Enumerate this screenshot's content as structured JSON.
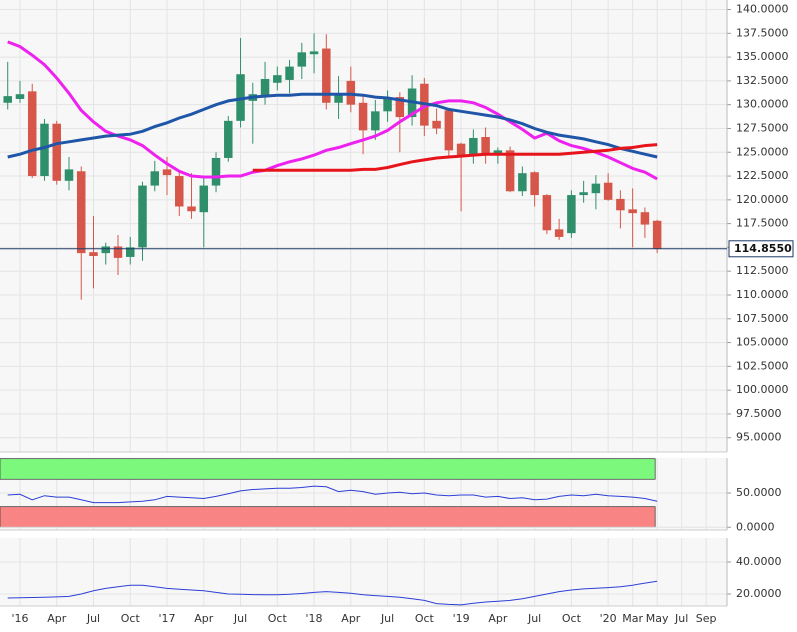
{
  "chart_data": [
    {
      "type": "candlestick",
      "x": [
        -1,
        0,
        1,
        2,
        3,
        4,
        5,
        6,
        7,
        8,
        9,
        10,
        11,
        12,
        13,
        14,
        15,
        16,
        17,
        18,
        19,
        20,
        21,
        22,
        23,
        24,
        25,
        26,
        27,
        28,
        29,
        30,
        31,
        32,
        33,
        34,
        35,
        36,
        37,
        38,
        39,
        40,
        41,
        42,
        43,
        44,
        45,
        46,
        47,
        48,
        49,
        50,
        51,
        52
      ],
      "open": [
        130.2,
        130.6,
        131.4,
        122.5,
        128.0,
        122.0,
        123.0,
        114.5,
        114.4,
        115.1,
        114.0,
        115.0,
        121.5,
        123.2,
        122.5,
        119.3,
        118.7,
        121.5,
        124.4,
        128.3,
        130.4,
        130.8,
        132.3,
        132.6,
        134.0,
        135.3,
        135.9,
        130.2,
        132.5,
        130.2,
        127.3,
        129.3,
        130.8,
        128.7,
        132.2,
        128.3,
        129.4,
        125.9,
        124.7,
        126.6,
        124.7,
        125.2,
        120.9,
        122.9,
        120.5,
        116.9,
        116.5,
        120.5,
        120.7,
        121.8,
        120.1,
        119.0,
        118.7,
        117.8
      ],
      "high": [
        134.5,
        132.5,
        132.2,
        128.5,
        128.3,
        124.5,
        123.5,
        118.3,
        115.5,
        116.3,
        116.1,
        121.9,
        124.1,
        124.5,
        123.1,
        122.8,
        122.5,
        125.0,
        128.8,
        137.0,
        132.3,
        134.5,
        134.0,
        134.7,
        136.5,
        137.5,
        137.4,
        133.0,
        134.0,
        130.9,
        130.5,
        131.5,
        131.3,
        133.1,
        132.8,
        129.6,
        129.6,
        126.0,
        127.4,
        127.6,
        125.5,
        125.6,
        123.5,
        123.0,
        120.6,
        118.0,
        121.0,
        122.0,
        122.6,
        122.8,
        121.0,
        121.2,
        119.2,
        117.9
      ],
      "low": [
        129.5,
        130.2,
        122.3,
        122.0,
        121.6,
        121.0,
        109.5,
        110.7,
        113.2,
        112.1,
        113.2,
        113.6,
        120.9,
        120.5,
        118.3,
        118.0,
        115.0,
        120.8,
        124.0,
        127.6,
        125.9,
        130.0,
        131.5,
        131.2,
        132.7,
        133.3,
        129.5,
        128.5,
        129.2,
        124.8,
        126.3,
        128.2,
        125.0,
        127.8,
        126.7,
        126.9,
        124.5,
        118.8,
        123.8,
        123.8,
        123.8,
        120.8,
        120.4,
        119.3,
        116.4,
        115.8,
        116.0,
        119.7,
        119.0,
        119.9,
        117.0,
        115.0,
        116.0,
        114.4
      ],
      "close": [
        130.9,
        131.1,
        122.5,
        128.0,
        122.0,
        123.2,
        114.4,
        114.1,
        115.1,
        113.9,
        115.0,
        121.5,
        123.0,
        122.6,
        119.3,
        118.8,
        121.5,
        124.4,
        128.3,
        133.2,
        131.1,
        132.7,
        133.1,
        134.0,
        135.5,
        135.6,
        130.2,
        131.2,
        130.0,
        127.3,
        129.3,
        130.7,
        128.7,
        131.7,
        127.8,
        127.5,
        125.2,
        124.7,
        126.5,
        124.7,
        125.2,
        120.9,
        122.8,
        120.5,
        116.8,
        116.1,
        120.5,
        120.8,
        121.7,
        120.0,
        118.9,
        118.6,
        117.4,
        114.855
      ],
      "up_color": "#2f8f6b",
      "down_color": "#d6574a",
      "overlays": [
        {
          "color": "#ee22ee",
          "values": [
            136.6,
            136.1,
            135.2,
            134.2,
            132.8,
            131.2,
            129.4,
            128.2,
            127.2,
            126.7,
            126.3,
            125.7,
            124.7,
            123.8,
            123.0,
            122.5,
            122.4,
            122.4,
            122.5,
            122.5,
            122.9,
            123.1,
            123.6,
            124.0,
            124.3,
            124.7,
            125.2,
            125.5,
            125.9,
            126.3,
            126.7,
            127.3,
            128.2,
            129.0,
            129.8,
            130.2,
            130.4,
            130.4,
            130.2,
            129.7,
            129.0,
            128.2,
            127.4,
            126.5,
            127.0,
            126.2,
            125.7,
            125.4,
            125.0,
            124.5,
            123.9,
            123.3,
            122.9,
            122.2
          ]
        },
        {
          "color": "#1f56a8",
          "values": [
            124.5,
            124.8,
            125.2,
            125.5,
            125.9,
            126.1,
            126.3,
            126.5,
            126.7,
            126.8,
            126.9,
            127.2,
            127.7,
            128.1,
            128.6,
            129.0,
            129.5,
            130.0,
            130.4,
            130.6,
            130.8,
            130.9,
            131.0,
            131.0,
            131.1,
            131.1,
            131.1,
            131.1,
            131.1,
            131.0,
            130.8,
            130.7,
            130.5,
            130.3,
            130.1,
            129.9,
            129.5,
            129.3,
            129.1,
            128.9,
            128.7,
            128.4,
            128.0,
            127.5,
            127.1,
            126.8,
            126.6,
            126.4,
            126.1,
            125.8,
            125.4,
            125.1,
            124.8,
            124.5
          ]
        },
        {
          "color": "#e8141b",
          "values": [
            null,
            null,
            null,
            null,
            null,
            null,
            null,
            null,
            null,
            null,
            null,
            null,
            null,
            null,
            null,
            null,
            null,
            null,
            null,
            null,
            123.1,
            123.1,
            123.1,
            123.1,
            123.1,
            123.1,
            123.1,
            123.1,
            123.1,
            123.2,
            123.2,
            123.4,
            123.7,
            124.0,
            124.2,
            124.4,
            124.5,
            124.6,
            124.7,
            124.8,
            124.8,
            124.8,
            124.8,
            124.8,
            124.8,
            124.8,
            124.9,
            125.0,
            125.1,
            125.2,
            125.4,
            125.5,
            125.7,
            125.8
          ]
        }
      ],
      "last_price": {
        "value": 114.855,
        "label": "114.8550"
      },
      "ylim": [
        93.5,
        141
      ],
      "yticks": [
        {
          "value": 95,
          "label": "95.0000"
        },
        {
          "value": 97.5,
          "label": "97.5000"
        },
        {
          "value": 100,
          "label": "100.0000"
        },
        {
          "value": 102.5,
          "label": "102.5000"
        },
        {
          "value": 105,
          "label": "105.0000"
        },
        {
          "value": 107.5,
          "label": "107.5000"
        },
        {
          "value": 110,
          "label": "110.0000"
        },
        {
          "value": 112.5,
          "label": "112.5000"
        },
        {
          "value": 115,
          "label": "115.0000"
        },
        {
          "value": 117.5,
          "label": "117.5000"
        },
        {
          "value": 120,
          "label": "120.0000"
        },
        {
          "value": 122.5,
          "label": "122.5000"
        },
        {
          "value": 125,
          "label": "125.0000"
        },
        {
          "value": 127.5,
          "label": "127.5000"
        },
        {
          "value": 130,
          "label": "130.0000"
        },
        {
          "value": 132.5,
          "label": "132.5000"
        },
        {
          "value": 135,
          "label": "135.0000"
        },
        {
          "value": 137.5,
          "label": "137.5000"
        },
        {
          "value": 140,
          "label": "140.0000"
        }
      ],
      "xlim": [
        -1.63,
        57.7
      ],
      "xticks": [
        {
          "value": 0,
          "label": "'16"
        },
        {
          "value": 3,
          "label": "Apr"
        },
        {
          "value": 6,
          "label": "Jul"
        },
        {
          "value": 9,
          "label": "Oct"
        },
        {
          "value": 12,
          "label": "'17"
        },
        {
          "value": 15,
          "label": "Apr"
        },
        {
          "value": 18,
          "label": "Jul"
        },
        {
          "value": 21,
          "label": "Oct"
        },
        {
          "value": 24,
          "label": "'18"
        },
        {
          "value": 27,
          "label": "Apr"
        },
        {
          "value": 30,
          "label": "Jul"
        },
        {
          "value": 33,
          "label": "Oct"
        },
        {
          "value": 36,
          "label": "'19"
        },
        {
          "value": 39,
          "label": "Apr"
        },
        {
          "value": 42,
          "label": "Jul"
        },
        {
          "value": 45,
          "label": "Oct"
        },
        {
          "value": 48,
          "label": "'20"
        },
        {
          "value": 50,
          "label": "Mar"
        },
        {
          "value": 52,
          "label": "May"
        },
        {
          "value": 54,
          "label": "Jul"
        },
        {
          "value": 56,
          "label": "Sep"
        }
      ]
    },
    {
      "type": "line",
      "color": "#2b3fd6",
      "values": [
        47,
        48,
        40,
        46,
        44,
        44,
        40,
        36,
        36,
        36,
        37,
        38,
        40,
        45,
        44,
        43,
        42,
        45,
        49,
        53,
        55,
        56,
        57,
        57,
        58,
        60,
        59,
        52,
        54,
        52,
        48,
        50,
        51,
        49,
        50,
        47,
        46,
        47,
        47,
        44,
        45,
        42,
        43,
        40,
        41,
        45,
        47,
        46,
        48,
        46,
        45,
        44,
        42,
        38
      ],
      "bands": [
        {
          "range": [
            70,
            100
          ],
          "color": "#7cf87c"
        },
        {
          "range": [
            0,
            30
          ],
          "color": "#f88484"
        }
      ],
      "ylim": [
        -4,
        101
      ],
      "yticks": [
        {
          "value": 0,
          "label": "0.0000"
        },
        {
          "value": 50,
          "label": "50.0000"
        }
      ]
    },
    {
      "type": "line",
      "color": "#2b3fd6",
      "values": [
        17.5,
        17.6,
        17.8,
        18,
        18.2,
        18.5,
        20,
        22,
        23.5,
        24.5,
        25.5,
        25.5,
        24.5,
        23.5,
        23,
        22.5,
        22,
        21,
        20,
        19.8,
        19.6,
        19.5,
        19.5,
        19.8,
        20.3,
        21,
        21.5,
        21,
        20.5,
        19.5,
        19,
        18.5,
        18,
        17,
        16,
        14,
        13.5,
        13.2,
        14.2,
        15,
        15.5,
        16,
        17,
        18.5,
        20,
        21.5,
        22.5,
        23.2,
        23.6,
        24,
        24.5,
        25.5,
        26.8,
        28
      ],
      "ylim": [
        12.5,
        55
      ],
      "yticks": [
        {
          "value": 20,
          "label": "20.0000"
        },
        {
          "value": 40,
          "label": "40.0000"
        }
      ]
    }
  ]
}
